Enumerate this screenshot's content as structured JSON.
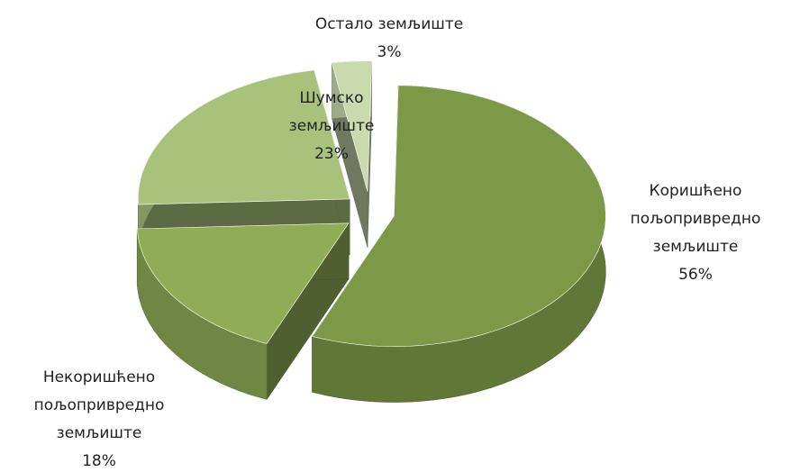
{
  "chart_data": {
    "type": "pie",
    "categories": [
      "Коришћено пољопривредно земљиште",
      "Некоришћено пољопривредно земљиште",
      "Шумско земљиште",
      "Остало земљиште"
    ],
    "values": [
      56,
      18,
      23,
      3
    ],
    "value_labels": [
      "56%",
      "18%",
      "23%",
      "3%"
    ],
    "colors": [
      "#7b9947",
      "#8fad56",
      "#a9c27b",
      "#cbdaae"
    ]
  }
}
